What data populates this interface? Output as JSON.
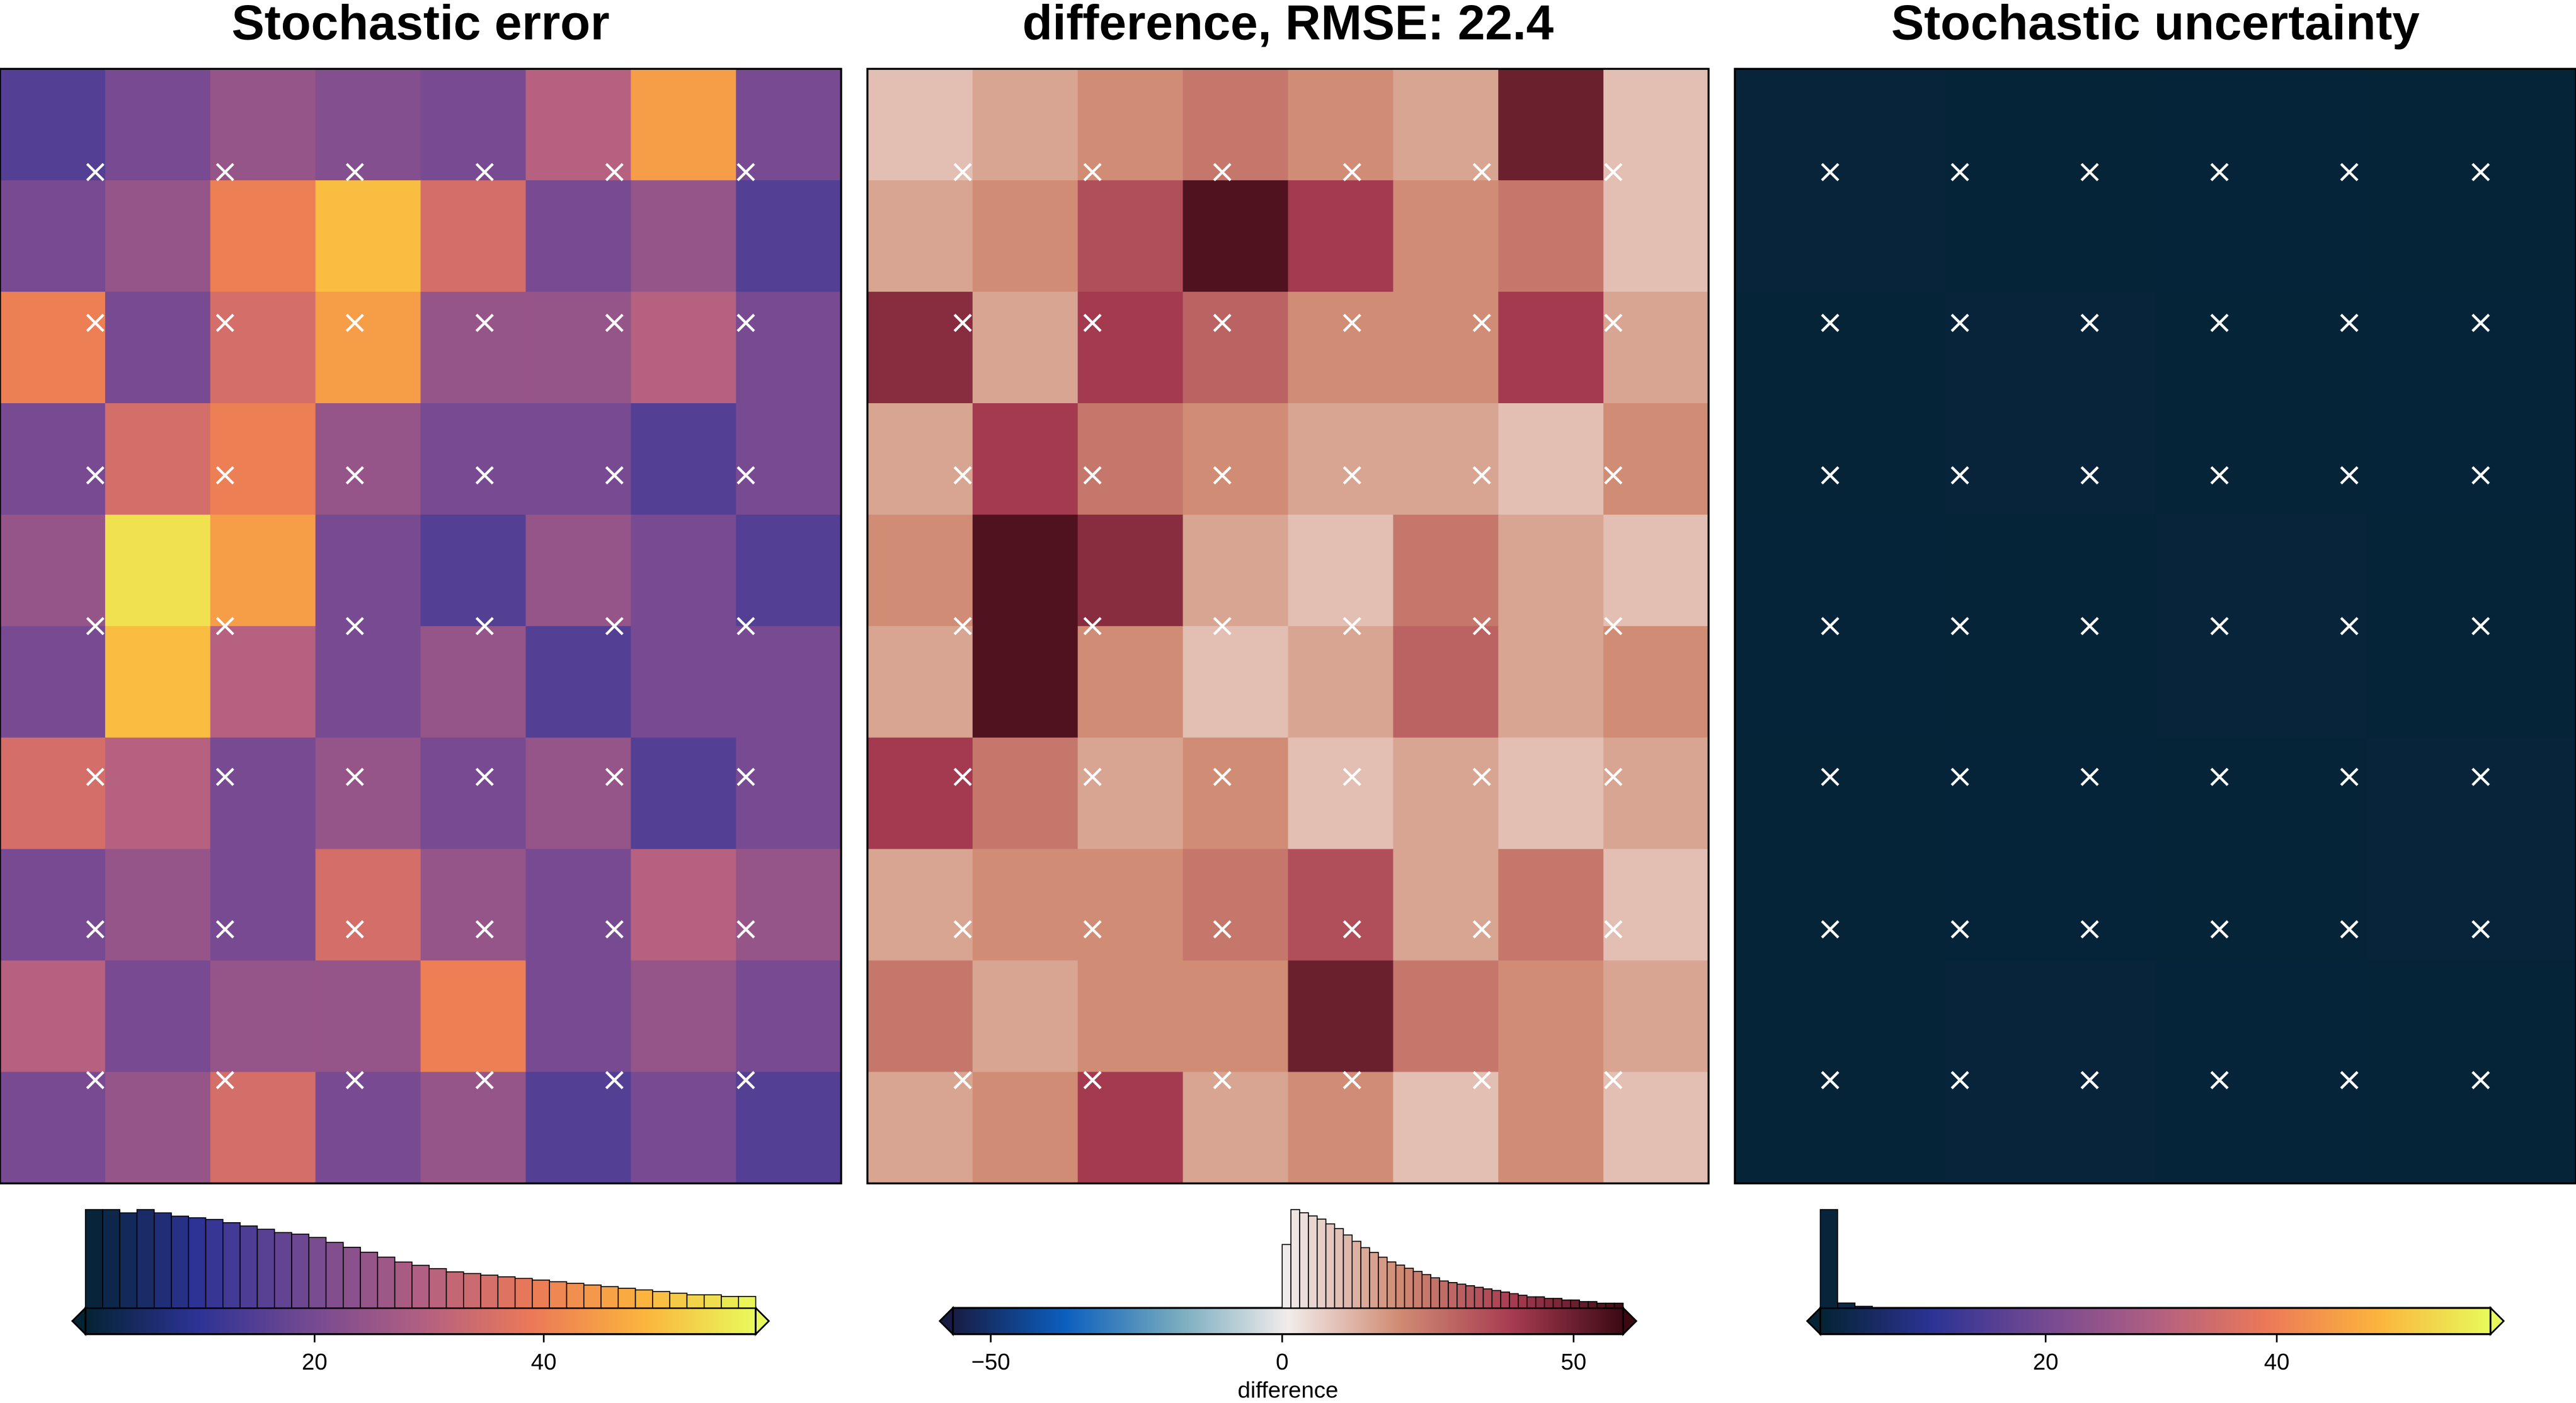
{
  "chart_data": [
    {
      "type": "heatmap",
      "title": "Stochastic error",
      "colors": [
        "#042333",
        "#2c3395",
        "#744992",
        "#b15f82",
        "#eb7958",
        "#fbb43d",
        "#e8fa5b"
      ],
      "zlim": [
        0,
        58.5
      ],
      "zticks": [
        20,
        40
      ],
      "z": [
        [
          15,
          20,
          25,
          22,
          20,
          30,
          45,
          20
        ],
        [
          20,
          25,
          40,
          50,
          35,
          20,
          25,
          15
        ],
        [
          40,
          20,
          35,
          45,
          25,
          25,
          30,
          20
        ],
        [
          20,
          35,
          40,
          25,
          20,
          20,
          15,
          20
        ],
        [
          25,
          55,
          45,
          20,
          15,
          25,
          20,
          15
        ],
        [
          20,
          50,
          30,
          20,
          25,
          15,
          20,
          20
        ],
        [
          35,
          30,
          20,
          25,
          20,
          25,
          15,
          20
        ],
        [
          20,
          25,
          20,
          35,
          25,
          20,
          30,
          25
        ],
        [
          30,
          20,
          25,
          25,
          40,
          20,
          25,
          20
        ],
        [
          20,
          25,
          35,
          20,
          25,
          15,
          20,
          15
        ]
      ],
      "histogram": {
        "bins": [
          0,
          1.5,
          3,
          4.5,
          6,
          7.5,
          9,
          10.5,
          12,
          13.5,
          15,
          16.5,
          18,
          19.5,
          21,
          22.5,
          24,
          25.5,
          27,
          28.5,
          30,
          31.5,
          33,
          34.5,
          36,
          37.5,
          39,
          40.5,
          42,
          43.5,
          45,
          46.5,
          48,
          49.5,
          51,
          52.5,
          54,
          55.5,
          57,
          58.5
        ],
        "counts": [
          60,
          60,
          58,
          60,
          58,
          56,
          55,
          54,
          52,
          50,
          48,
          46,
          45,
          43,
          40,
          37,
          34,
          31,
          28,
          26,
          24,
          22,
          21,
          20,
          19,
          18,
          17,
          16,
          15,
          14,
          13,
          12,
          11,
          10,
          9,
          8,
          8,
          7,
          7
        ]
      }
    },
    {
      "type": "heatmap",
      "title": "difference, RMSE: 22.4",
      "colors": [
        "#181c43",
        "#0c5ebe",
        "#75aabe",
        "#f1eceb",
        "#d08b73",
        "#a73c52",
        "#3c0912"
      ],
      "zlim": [
        -56.5,
        58.5
      ],
      "zticks": [
        {
          "value": -50,
          "label": "−50"
        },
        0,
        50
      ],
      "colorbar_label": "difference",
      "z": [
        [
          10,
          15,
          20,
          25,
          20,
          15,
          50,
          10
        ],
        [
          15,
          20,
          35,
          55,
          40,
          20,
          25,
          10
        ],
        [
          45,
          15,
          40,
          30,
          20,
          20,
          40,
          15
        ],
        [
          15,
          40,
          25,
          20,
          15,
          15,
          10,
          20
        ],
        [
          20,
          55,
          45,
          15,
          10,
          25,
          15,
          10
        ],
        [
          15,
          55,
          20,
          10,
          15,
          30,
          15,
          20
        ],
        [
          40,
          25,
          15,
          20,
          10,
          15,
          10,
          15
        ],
        [
          15,
          20,
          20,
          25,
          35,
          15,
          25,
          10
        ],
        [
          25,
          15,
          20,
          20,
          50,
          25,
          20,
          15
        ],
        [
          15,
          20,
          40,
          15,
          20,
          10,
          20,
          10
        ]
      ],
      "histogram": {
        "bins": [
          0,
          1.5,
          3,
          4.5,
          6,
          7.5,
          9,
          10.5,
          12,
          13.5,
          15,
          16.5,
          18,
          19.5,
          21,
          22.5,
          24,
          25.5,
          27,
          28.5,
          30,
          31.5,
          33,
          34.5,
          36,
          37.5,
          39,
          40.5,
          42,
          43.5,
          45,
          46.5,
          48,
          49.5,
          51,
          52.5,
          54,
          55.5,
          57,
          58.5
        ],
        "counts": [
          40,
          62,
          60,
          58,
          56,
          53,
          50,
          46,
          42,
          38,
          35,
          32,
          29,
          27,
          25,
          23,
          21,
          19,
          17,
          16,
          15,
          14,
          13,
          12,
          11,
          10,
          9,
          8,
          7,
          7,
          6,
          6,
          5,
          5,
          4,
          4,
          3,
          3,
          3
        ]
      }
    },
    {
      "type": "heatmap",
      "title": "Stochastic uncertainty",
      "colors": [
        "#042333",
        "#2c3395",
        "#744992",
        "#b15f82",
        "#eb7958",
        "#fbb43d",
        "#e8fa5b"
      ],
      "zlim": [
        0.5,
        58.5
      ],
      "zticks": [
        20,
        40
      ],
      "z": [
        [
          1.2,
          1.0,
          1.1,
          0.9
        ],
        [
          1.0,
          1.3,
          1.0,
          1.1
        ],
        [
          1.1,
          1.0,
          1.2,
          1.0
        ],
        [
          0.9,
          1.1,
          1.0,
          1.2
        ],
        [
          1.0,
          1.2,
          1.1,
          1.0
        ]
      ],
      "histogram": {
        "bins": [
          0.5,
          2,
          3.5,
          5
        ],
        "counts": [
          60,
          3,
          1
        ]
      }
    }
  ]
}
